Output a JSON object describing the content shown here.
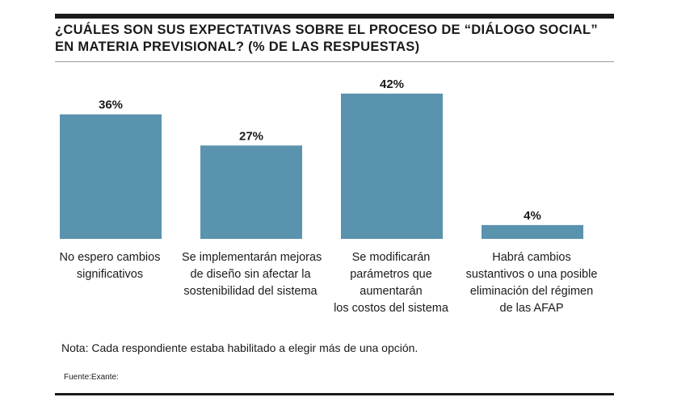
{
  "chart_data": {
    "type": "bar",
    "title_lines": [
      "¿CUÁLES SON SUS EXPECTATIVAS SOBRE EL PROCESO DE “DIÁLOGO SOCIAL”",
      "EN MATERIA PREVISIONAL? (% DE LAS RESPUESTAS)"
    ],
    "categories": [
      [
        "No espero cambios",
        "significativos"
      ],
      [
        "Se implementarán mejoras",
        "de diseño sin afectar la",
        "sostenibilidad del sistema"
      ],
      [
        "Se modificarán",
        "parámetros que",
        "aumentarán",
        "los costos del sistema"
      ],
      [
        "Habrá cambios",
        "sustantivos o una posible",
        "eliminación del régimen",
        "de las AFAP"
      ]
    ],
    "values": [
      36,
      27,
      42,
      4
    ],
    "value_labels": [
      "36%",
      "27%",
      "42%",
      "4%"
    ],
    "ylim": [
      0,
      42
    ],
    "xlabel": "",
    "ylabel": "",
    "grid": false,
    "bar_color": "#5a93ae"
  },
  "note": "Nota: Cada respondiente estaba habilitado a elegir más de una opción.",
  "source": "Fuente:Exante:"
}
